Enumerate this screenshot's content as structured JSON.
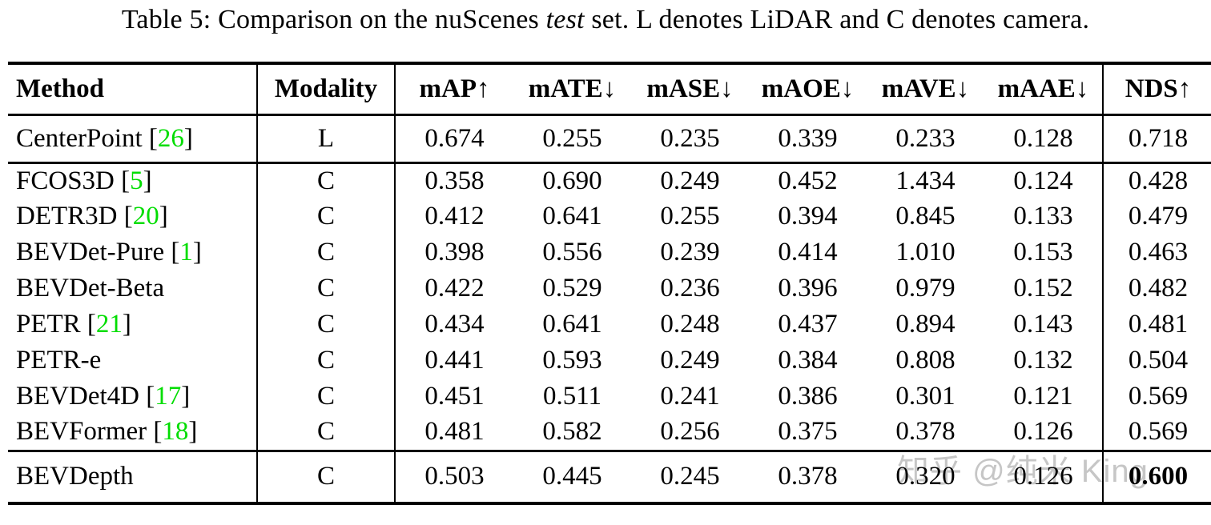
{
  "title": {
    "pre": "Table 5: Comparison on the nuScenes ",
    "italic": "test",
    "post": " set. L denotes LiDAR and C denotes camera."
  },
  "colors": {
    "citation_green": "#00DD00",
    "text_black": "#000000",
    "watermark_gray": "#C6C6C6"
  },
  "watermark": {
    "text": "知乎 @纯米 King"
  },
  "table": {
    "header": [
      "Method",
      "Modality",
      "mAP↑",
      "mATE↓",
      "mASE↓",
      "mAOE↓",
      "mAVE↓",
      "mAAE↓",
      "NDS↑"
    ],
    "sections": [
      [
        {
          "method": "CenterPoint",
          "cite": "26",
          "modality": "L",
          "values": [
            "0.674",
            "0.255",
            "0.235",
            "0.339",
            "0.233",
            "0.128",
            "0.718"
          ],
          "bold_last": false
        }
      ],
      [
        {
          "method": "FCOS3D",
          "cite": "5",
          "modality": "C",
          "values": [
            "0.358",
            "0.690",
            "0.249",
            "0.452",
            "1.434",
            "0.124",
            "0.428"
          ],
          "bold_last": false
        },
        {
          "method": "DETR3D",
          "cite": "20",
          "modality": "C",
          "values": [
            "0.412",
            "0.641",
            "0.255",
            "0.394",
            "0.845",
            "0.133",
            "0.479"
          ],
          "bold_last": false
        },
        {
          "method": "BEVDet-Pure",
          "cite": "1",
          "modality": "C",
          "values": [
            "0.398",
            "0.556",
            "0.239",
            "0.414",
            "1.010",
            "0.153",
            "0.463"
          ],
          "bold_last": false
        },
        {
          "method": "BEVDet-Beta",
          "cite": null,
          "modality": "C",
          "values": [
            "0.422",
            "0.529",
            "0.236",
            "0.396",
            "0.979",
            "0.152",
            "0.482"
          ],
          "bold_last": false
        },
        {
          "method": "PETR",
          "cite": "21",
          "modality": "C",
          "values": [
            "0.434",
            "0.641",
            "0.248",
            "0.437",
            "0.894",
            "0.143",
            "0.481"
          ],
          "bold_last": false
        },
        {
          "method": "PETR-e",
          "cite": null,
          "modality": "C",
          "values": [
            "0.441",
            "0.593",
            "0.249",
            "0.384",
            "0.808",
            "0.132",
            "0.504"
          ],
          "bold_last": false
        },
        {
          "method": "BEVDet4D",
          "cite": "17",
          "modality": "C",
          "values": [
            "0.451",
            "0.511",
            "0.241",
            "0.386",
            "0.301",
            "0.121",
            "0.569"
          ],
          "bold_last": false
        },
        {
          "method": "BEVFormer",
          "cite": "18",
          "modality": "C",
          "values": [
            "0.481",
            "0.582",
            "0.256",
            "0.375",
            "0.378",
            "0.126",
            "0.569"
          ],
          "bold_last": false
        }
      ],
      [
        {
          "method": "BEVDepth",
          "cite": null,
          "modality": "C",
          "values": [
            "0.503",
            "0.445",
            "0.245",
            "0.378",
            "0.320",
            "0.126",
            "0.600"
          ],
          "bold_last": true
        }
      ]
    ]
  }
}
